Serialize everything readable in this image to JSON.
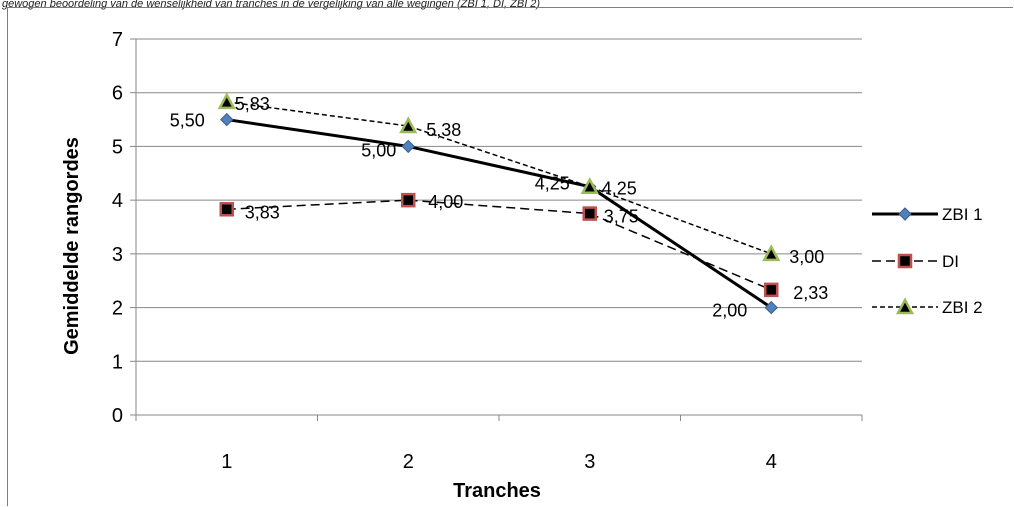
{
  "caption": "gewogen beoordeling van de wenselijkheid van tranches in de vergelijking van alle wegingen (ZBI 1, DI, ZBI 2)",
  "chart_data": {
    "type": "line",
    "categories": [
      "1",
      "2",
      "3",
      "4"
    ],
    "xlabel": "Tranches",
    "ylabel": "Gemiddelde rangordes",
    "ylim": [
      0,
      7
    ],
    "yticks": [
      "0",
      "1",
      "2",
      "3",
      "4",
      "5",
      "6",
      "7"
    ],
    "grid": true,
    "legend_position": "right",
    "series": [
      {
        "name": "ZBI 1",
        "values": [
          5.5,
          5.0,
          4.25,
          2.0
        ],
        "labels": [
          "5,50",
          "5,00",
          "4,25",
          "2,00"
        ],
        "line_color": "#000000",
        "marker": "diamond",
        "marker_color": "#4f81bd",
        "dash": "solid"
      },
      {
        "name": "DI",
        "values": [
          3.83,
          4.0,
          3.75,
          2.33
        ],
        "labels": [
          "3,83",
          "4,00",
          "3,75",
          "2,33"
        ],
        "line_color": "#000000",
        "marker": "square",
        "marker_color": "#c0504d",
        "dash": "dashed"
      },
      {
        "name": "ZBI 2",
        "values": [
          5.83,
          5.38,
          4.25,
          3.0
        ],
        "labels": [
          "5,83",
          "5,38",
          "4,25",
          "3,00"
        ],
        "line_color": "#000000",
        "marker": "triangle",
        "marker_color": "#9bbb59",
        "dash": "dotted"
      }
    ]
  }
}
